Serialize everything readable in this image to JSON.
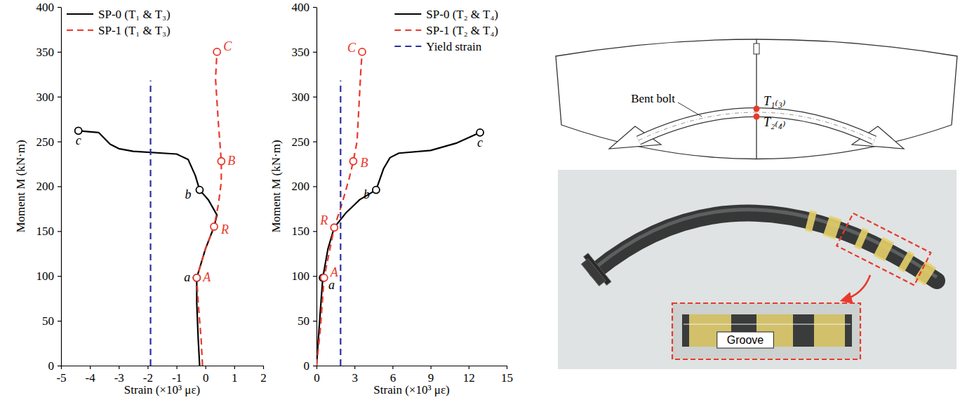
{
  "chart_data": [
    {
      "type": "line",
      "xlabel": "Strain (×10³ με)",
      "ylabel": "Moment M (kN·m)",
      "xlim": [
        -5,
        2
      ],
      "xticks": [
        -5,
        -4,
        -3,
        -2,
        -1,
        0,
        1,
        2
      ],
      "ylim": [
        0,
        400
      ],
      "yticks": [
        0,
        50,
        100,
        150,
        200,
        250,
        300,
        350,
        400
      ],
      "legend": "upper left",
      "series": [
        {
          "name": "SP-0 (T₁ & T₃)",
          "color": "#000000",
          "line_style": "solid",
          "x": [
            -0.2,
            -0.25,
            -0.3,
            -0.3,
            0.0,
            0.3,
            0.4,
            0.1,
            -0.2,
            -0.35,
            -0.6,
            -1.0,
            -2.5,
            -3.0,
            -3.3,
            -3.7,
            -4.4
          ],
          "values": [
            0,
            30,
            70,
            98,
            130,
            155,
            168,
            185,
            196,
            212,
            230,
            236,
            239,
            242,
            247,
            260,
            262
          ]
        },
        {
          "name": "SP-1 (T₁ & T₃)",
          "color": "#e8392c",
          "line_style": "dashed",
          "x": [
            -0.1,
            -0.15,
            -0.25,
            -0.3,
            0.0,
            0.3,
            0.45,
            0.55,
            0.55,
            0.45,
            0.35,
            0.4
          ],
          "values": [
            0,
            30,
            70,
            98,
            130,
            155,
            180,
            205,
            228,
            270,
            320,
            350
          ]
        },
        {
          "color": "#2b2f9e",
          "line_style": "dashed",
          "x": [
            -1.9,
            -1.9
          ],
          "values": [
            0,
            318
          ]
        }
      ],
      "annotations": [
        {
          "text": "a",
          "x": -0.3,
          "y": 98,
          "color": "#000000"
        },
        {
          "text": "b",
          "x": -0.2,
          "y": 196,
          "color": "#000000"
        },
        {
          "text": "c",
          "x": -4.4,
          "y": 262,
          "color": "#000000"
        },
        {
          "text": "A",
          "x": -0.3,
          "y": 98,
          "color": "#e8392c"
        },
        {
          "text": "R",
          "x": 0.3,
          "y": 155,
          "color": "#e8392c"
        },
        {
          "text": "B",
          "x": 0.55,
          "y": 228,
          "color": "#e8392c"
        },
        {
          "text": "C",
          "x": 0.4,
          "y": 350,
          "color": "#e8392c"
        }
      ]
    },
    {
      "type": "line",
      "xlabel": "Strain (×10³ με)",
      "ylabel": "Moment M (kN·m)",
      "xlim": [
        0,
        15
      ],
      "xticks": [
        0,
        3,
        6,
        9,
        12,
        15
      ],
      "ylim": [
        0,
        400
      ],
      "yticks": [
        0,
        50,
        100,
        150,
        200,
        250,
        300,
        350,
        400
      ],
      "legend": "upper right",
      "series": [
        {
          "name": "SP-0 (T₂ & T₄)",
          "color": "#000000",
          "line_style": "solid",
          "x": [
            0,
            0.15,
            0.35,
            0.5,
            0.9,
            1.4,
            2.3,
            3.4,
            4.7,
            5.3,
            5.8,
            6.5,
            9,
            11,
            12.9
          ],
          "values": [
            0,
            30,
            70,
            98,
            130,
            154,
            170,
            185,
            196,
            220,
            232,
            237,
            240,
            248,
            260
          ]
        },
        {
          "name": "SP-1 (T₂ & T₄)",
          "color": "#e8392c",
          "line_style": "dashed",
          "x": [
            0,
            0.3,
            0.6,
            1.4,
            2.0,
            2.6,
            2.9,
            3.2,
            3.35,
            3.5,
            3.6
          ],
          "values": [
            0,
            40,
            98,
            154,
            180,
            210,
            228,
            250,
            290,
            330,
            350
          ]
        },
        {
          "name": "Yield strain",
          "color": "#2b2f9e",
          "line_style": "dashed",
          "x": [
            1.9,
            1.9
          ],
          "values": [
            0,
            318
          ]
        }
      ],
      "annotations": [
        {
          "text": "a",
          "x": 0.5,
          "y": 98,
          "color": "#000000"
        },
        {
          "text": "b",
          "x": 4.7,
          "y": 196,
          "color": "#000000"
        },
        {
          "text": "c",
          "x": 12.9,
          "y": 260,
          "color": "#000000"
        },
        {
          "text": "A",
          "x": 0.6,
          "y": 98,
          "color": "#e8392c"
        },
        {
          "text": "R",
          "x": 1.4,
          "y": 154,
          "color": "#e8392c"
        },
        {
          "text": "B",
          "x": 2.9,
          "y": 228,
          "color": "#e8392c"
        },
        {
          "text": "C",
          "x": 3.6,
          "y": 350,
          "color": "#e8392c"
        }
      ]
    }
  ],
  "diagram": {
    "bolt_label": "Bent bolt",
    "gauges": [
      "T₁₍₃₎",
      "T₂₍₄₎"
    ]
  },
  "photo": {
    "inset_label": "Groove"
  }
}
